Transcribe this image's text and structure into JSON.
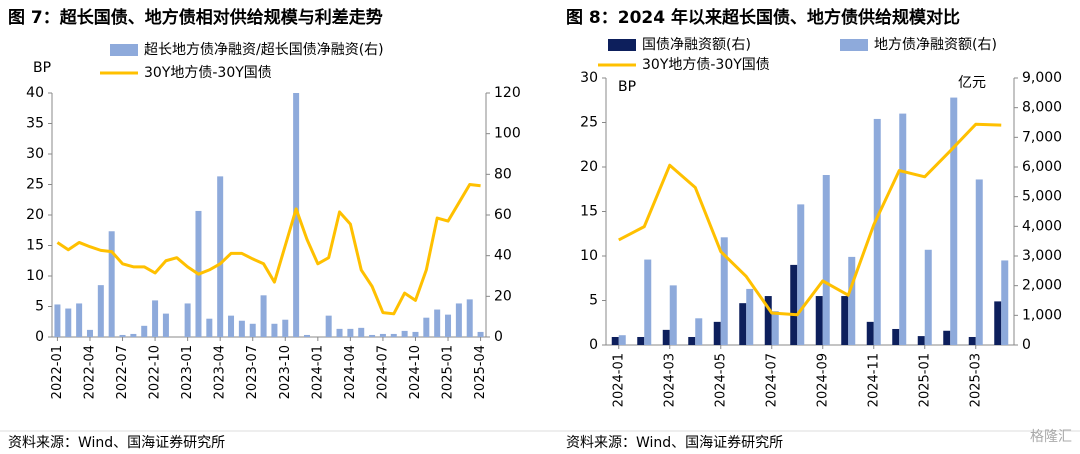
{
  "chart_data": [
    {
      "type": "combo",
      "title": "图 7：超长国债、地方债相对供给规模与利差走势",
      "y_label": "BP",
      "source": "资料来源：Wind、国海证券研究所",
      "categories": [
        "2022-01",
        null,
        null,
        "2022-04",
        null,
        null,
        "2022-07",
        null,
        null,
        "2022-10",
        null,
        null,
        "2023-01",
        null,
        null,
        "2023-04",
        null,
        null,
        "2023-07",
        null,
        null,
        "2023-10",
        null,
        null,
        "2024-01",
        null,
        null,
        "2024-04",
        null,
        null,
        "2024-07",
        null,
        null,
        "2024-10",
        null,
        null,
        "2025-01",
        null,
        null,
        "2025-04"
      ],
      "series": [
        {
          "name": "超长地方债净融资/超长国债净融资(右)",
          "type": "bar",
          "axis": "y2",
          "color": "#8eaadb",
          "values": [
            16,
            14,
            16.5,
            3.5,
            25.5,
            52,
            1,
            1.5,
            5.5,
            18,
            11.5,
            0,
            16.5,
            62,
            9,
            79,
            10.5,
            8,
            6.5,
            20.5,
            6.5,
            8.5,
            120,
            1,
            0,
            10.5,
            4,
            4,
            4.5,
            1,
            1.5,
            1.5,
            3,
            2.5,
            9.5,
            13.5,
            11,
            16.5,
            18.5,
            2.5
          ]
        },
        {
          "name": "30Y地方债-30Y国债",
          "type": "line",
          "axis": "y",
          "color": "#ffc000",
          "values": [
            15.5,
            14.3,
            15.5,
            14.8,
            14.2,
            14,
            12,
            11.5,
            11.5,
            10.5,
            12.5,
            13,
            11.5,
            10.3,
            11,
            12,
            13.7,
            13.7,
            12.8,
            12,
            9,
            15,
            21,
            16,
            12,
            13,
            20.5,
            18.5,
            11,
            8.3,
            4,
            3.8,
            7.2,
            6,
            11,
            19.5,
            19,
            22,
            25,
            24.8
          ]
        }
      ],
      "ylim": [
        0,
        40
      ],
      "yticks": [
        0,
        5,
        10,
        15,
        20,
        25,
        30,
        35,
        40
      ],
      "y2lim": [
        0,
        120
      ],
      "y2ticks": [
        0,
        20,
        40,
        60,
        80,
        100,
        120
      ]
    },
    {
      "type": "combo",
      "title": "图 8：2024 年以来超长国债、地方债供给规模对比",
      "y_label": "BP",
      "y2_label": "亿元",
      "source": "资料来源：Wind、国海证券研究所",
      "categories": [
        "2024-01",
        null,
        "2024-03",
        null,
        "2024-05",
        null,
        "2024-07",
        null,
        "2024-09",
        null,
        "2024-11",
        null,
        "2025-01",
        null,
        "2025-03",
        null
      ],
      "series": [
        {
          "name": "国债净融资额(右)",
          "type": "bar",
          "axis": "y2",
          "color": "#0d1f5c",
          "values": [
            270,
            270,
            510,
            270,
            780,
            1410,
            1650,
            2700,
            1650,
            1650,
            780,
            540,
            300,
            480,
            270,
            1470
          ]
        },
        {
          "name": "地方债净融资额(右)",
          "type": "bar",
          "axis": "y2",
          "color": "#8eaadb",
          "values": [
            330,
            2880,
            2010,
            900,
            3630,
            1890,
            1140,
            4740,
            5730,
            2970,
            7620,
            7800,
            3210,
            8340,
            5580,
            2850
          ]
        },
        {
          "name": "30Y地方债-30Y国债",
          "type": "line",
          "axis": "y",
          "color": "#ffc000",
          "values": [
            11.8,
            13.3,
            20.2,
            17.7,
            10.5,
            7.7,
            3.6,
            3.4,
            7.2,
            5.6,
            13.5,
            19.6,
            18.9,
            21.8,
            24.8,
            24.7
          ]
        }
      ],
      "ylim": [
        0,
        30
      ],
      "yticks": [
        0,
        5,
        10,
        15,
        20,
        25,
        30
      ],
      "y2lim": [
        0,
        9000
      ],
      "y2ticks": [
        0,
        {
          "value": 1000,
          "label": "1,000"
        },
        {
          "value": 2000,
          "label": "2,000"
        },
        {
          "value": 3000,
          "label": "3,000"
        },
        {
          "value": 4000,
          "label": "4,000"
        },
        {
          "value": 5000,
          "label": "5,000"
        },
        {
          "value": 6000,
          "label": "6,000"
        },
        {
          "value": 7000,
          "label": "7,000"
        },
        {
          "value": 8000,
          "label": "8,000"
        },
        {
          "value": 9000,
          "label": "9,000"
        }
      ]
    }
  ],
  "watermark": "格隆汇"
}
